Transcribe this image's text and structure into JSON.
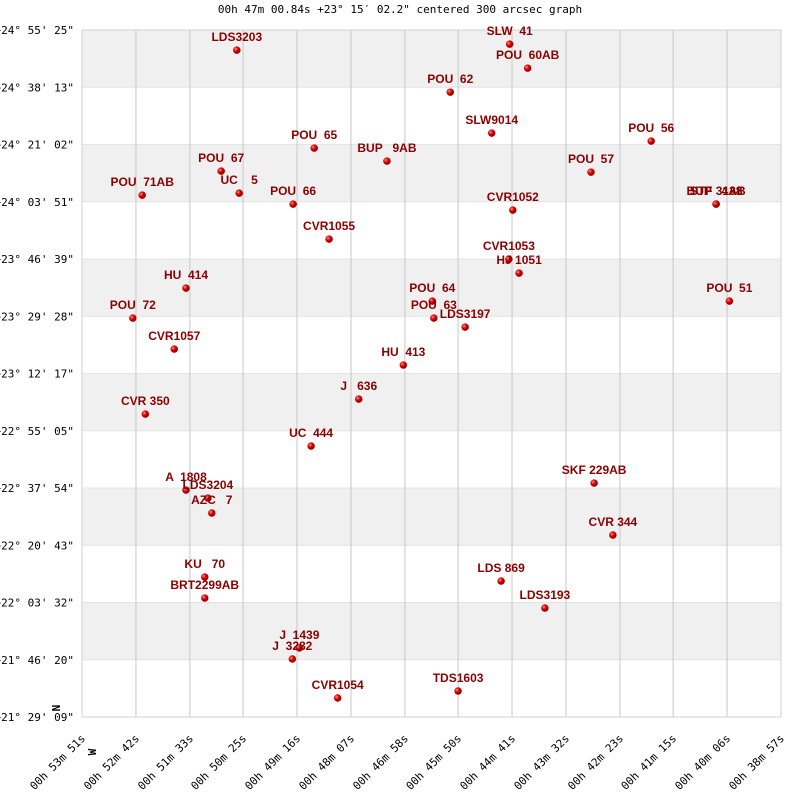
{
  "chart_data": {
    "type": "scatter",
    "title": "00h 47m 00.84s +23° 15′ 02.2\" centered 300 arcsec graph",
    "north_label": "N",
    "west_label": "W",
    "color": "#cc0000",
    "label_color": "#8b0000",
    "grid": true,
    "xlim": [
      3231,
      2337
    ],
    "xticks": [
      {
        "value": 3231,
        "label": "00h 53m 51s"
      },
      {
        "value": 3162,
        "label": "00h 52m 42s"
      },
      {
        "value": 3093,
        "label": "00h 51m 33s"
      },
      {
        "value": 3025,
        "label": "00h 50m 25s"
      },
      {
        "value": 2956,
        "label": "00h 49m 16s"
      },
      {
        "value": 2887,
        "label": "00h 48m 07s"
      },
      {
        "value": 2818,
        "label": "00h 46m 58s"
      },
      {
        "value": 2750,
        "label": "00h 45m 50s"
      },
      {
        "value": 2681,
        "label": "00h 44m 41s"
      },
      {
        "value": 2612,
        "label": "00h 43m 32s"
      },
      {
        "value": 2543,
        "label": "00h 42m 23s"
      },
      {
        "value": 2475,
        "label": "00h 41m 15s"
      },
      {
        "value": 2406,
        "label": "00h 40m 06s"
      },
      {
        "value": 2337,
        "label": "00h 38m 57s"
      }
    ],
    "ylim": [
      1749,
      14125
    ],
    "yticks": [
      {
        "value": 1749,
        "label": "+21° 29' 09\""
      },
      {
        "value": 2780,
        "label": "+21° 46' 20\""
      },
      {
        "value": 3812,
        "label": "+22° 03' 32\""
      },
      {
        "value": 4843,
        "label": "+22° 20' 43\""
      },
      {
        "value": 5874,
        "label": "+22° 37' 54\""
      },
      {
        "value": 6905,
        "label": "+22° 55' 05\""
      },
      {
        "value": 7937,
        "label": "+23° 12' 17\""
      },
      {
        "value": 8968,
        "label": "+23° 29' 28\""
      },
      {
        "value": 9999,
        "label": "+23° 46' 39\""
      },
      {
        "value": 11031,
        "label": "+24° 03' 51\""
      },
      {
        "value": 12062,
        "label": "+24° 21' 02\""
      },
      {
        "value": 13093,
        "label": "+24° 38' 13\""
      },
      {
        "value": 14125,
        "label": "+24° 55' 25\""
      }
    ],
    "labels": [
      "LDS3203",
      "SLW  41",
      "POU  60AB",
      "POU  62",
      "SLW9014",
      "POU  65",
      "BUP   9AB",
      "POU  56",
      "POU  57",
      "POU  67",
      "UC    5",
      "POU  71AB",
      "POU  66",
      "STF 3138",
      "BUP   4AB",
      "CVR1052",
      "CVR1055",
      "CVR1053",
      "HJ 1051",
      "HU  414",
      "POU  51",
      "POU  64",
      "POU  63",
      "LDS3197",
      "POU  72",
      "CVR1057",
      "HU  413",
      "J   636",
      "CVR 350",
      "UC  444",
      "SKF 229AB",
      "A  1808",
      "LDS3204",
      "AZC   7",
      "CVR 344",
      "KU   70",
      "BRT2299AB",
      "LDS 869",
      "LDS3193",
      "J  1439",
      "J  3282",
      "CVR1054",
      "TDS1603"
    ],
    "x": [
      3033,
      2684,
      2661,
      2760,
      2707,
      2934,
      2841,
      2503,
      2580,
      3053,
      3030,
      3154,
      2961,
      2420,
      2420,
      2680,
      2915,
      2685,
      2672,
      3098,
      2403,
      2783,
      2781,
      2741,
      3166,
      3113,
      2820,
      2877,
      3150,
      2938,
      2576,
      3098,
      3070,
      3065,
      2552,
      3074,
      3074,
      2695,
      2639,
      2953,
      2962,
      2904,
      2750
    ],
    "values": [
      13762,
      13870,
      13437,
      13005,
      12267,
      11997,
      11763,
      12123,
      11564,
      11583,
      11186,
      11150,
      10988,
      10988,
      10988,
      10880,
      10358,
      9998,
      9745,
      9475,
      9241,
      9241,
      8935,
      8773,
      8935,
      8377,
      8089,
      7476,
      7206,
      6630,
      5963,
      5837,
      5693,
      5423,
      5027,
      4270,
      3892,
      4198,
      3712,
      2992,
      2794,
      2091,
      2217
    ]
  }
}
